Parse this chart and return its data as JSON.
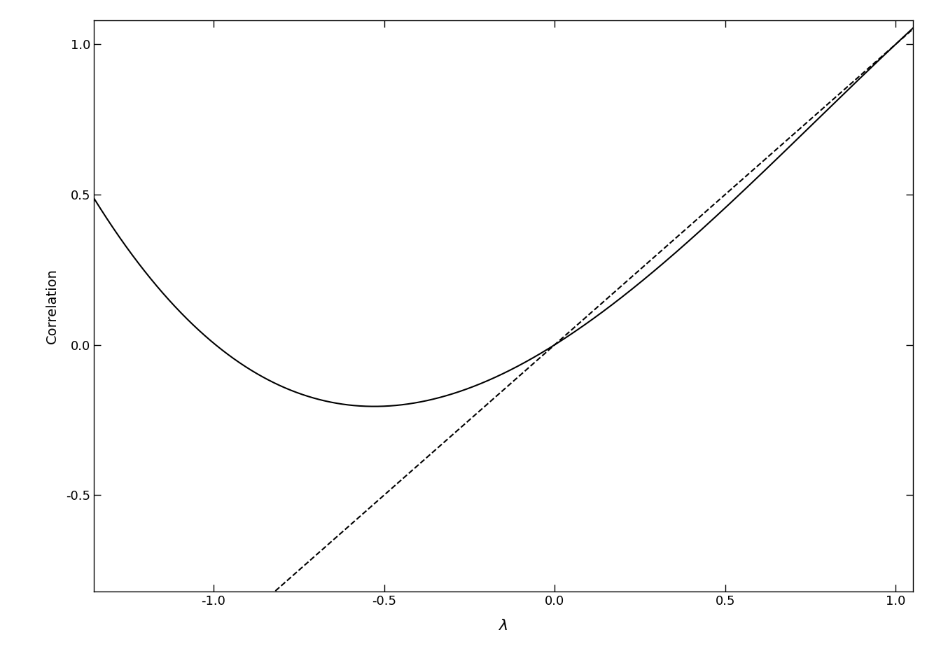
{
  "xlabel": "$\\lambda$",
  "ylabel": "Correlation",
  "xlim": [
    -1.35,
    1.05
  ],
  "ylim": [
    -0.82,
    1.08
  ],
  "x_ticks": [
    -1.0,
    -0.5,
    0.0,
    0.5,
    1.0
  ],
  "y_ticks": [
    -0.5,
    0.0,
    0.5,
    1.0
  ],
  "background_color": "#ffffff",
  "line_color": "#000000",
  "solid_linewidth": 1.5,
  "dashed_linewidth": 1.5,
  "poly_a": -0.217,
  "poly_b": 0.503,
  "poly_c": 0.714,
  "xlabel_fontsize": 16,
  "ylabel_fontsize": 14,
  "tick_labelsize": 13
}
